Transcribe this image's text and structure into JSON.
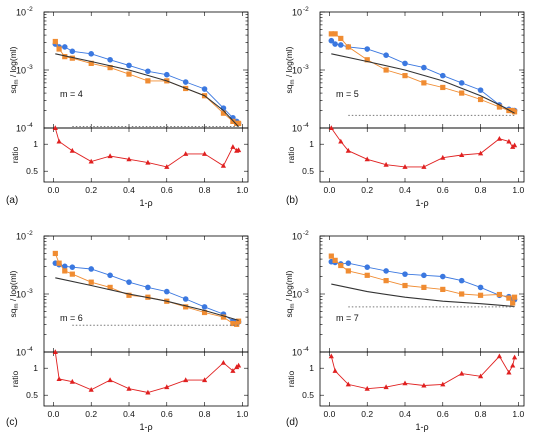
{
  "chart_data": [
    {
      "panel_label": "(a)",
      "annotation": "m = 4",
      "type": "line",
      "xlabel": "1-ρ",
      "top": {
        "ylabel": "sq_m / log(ml)",
        "ylabel_main": "sq",
        "ylabel_sub": "m",
        "ylabel_rest": " / log(ml)",
        "yscale": "log",
        "ylim": [
          0.0001,
          0.01
        ],
        "yticks": [
          {
            "v": 0.0001,
            "m": "4"
          },
          {
            "v": 0.001,
            "m": "3"
          },
          {
            "v": 0.01,
            "m": "2"
          }
        ],
        "xlim": [
          -0.05,
          1.03
        ],
        "series": [
          {
            "color": "#3b78e0",
            "marker": "circle",
            "x": [
              0.01,
              0.03,
              0.06,
              0.1,
              0.2,
              0.3,
              0.4,
              0.5,
              0.6,
              0.7,
              0.8,
              0.9,
              0.95,
              0.97,
              0.98
            ],
            "y": [
              0.0028,
              0.0025,
              0.0025,
              0.0021,
              0.0019,
              0.0015,
              0.0012,
              0.00095,
              0.00083,
              0.00062,
              0.00047,
              0.00022,
              0.00015,
              0.00013,
              0.00012
            ]
          },
          {
            "color": "#f08c32",
            "marker": "square",
            "x": [
              0.01,
              0.03,
              0.06,
              0.1,
              0.2,
              0.3,
              0.4,
              0.5,
              0.6,
              0.7,
              0.8,
              0.9,
              0.95,
              0.97,
              0.98
            ],
            "y": [
              0.0031,
              0.0023,
              0.0017,
              0.0016,
              0.0013,
              0.0011,
              0.00085,
              0.00065,
              0.00065,
              0.00048,
              0.00036,
              0.00018,
              0.00013,
              0.00012,
              0.00012
            ]
          },
          {
            "color": "#333333",
            "style": "solid",
            "x": [
              0.01,
              0.2,
              0.4,
              0.6,
              0.8,
              0.9,
              0.98
            ],
            "y": [
              0.0019,
              0.0014,
              0.001,
              0.00065,
              0.00036,
              0.0002,
              0.000105
            ]
          },
          {
            "color": "#777777",
            "style": "dotted",
            "x": [
              0.1,
              0.98
            ],
            "y": [
              0.000106,
              0.000106
            ]
          }
        ]
      },
      "bottom": {
        "ylabel": "ratio",
        "ylim": [
          0.3,
          1.3
        ],
        "yticks": [
          0.5,
          1
        ],
        "color": "#e02020",
        "x": [
          0.01,
          0.03,
          0.1,
          0.2,
          0.3,
          0.4,
          0.5,
          0.6,
          0.7,
          0.8,
          0.9,
          0.95,
          0.97,
          0.98
        ],
        "y": [
          1.3,
          1.05,
          0.88,
          0.68,
          0.78,
          0.72,
          0.66,
          0.58,
          0.82,
          0.82,
          0.6,
          0.95,
          0.88,
          0.89
        ]
      }
    },
    {
      "panel_label": "(b)",
      "annotation": "m = 5",
      "type": "line",
      "xlabel": "1-ρ",
      "top": {
        "ylabel": "sq_m / log(ml)",
        "ylabel_main": "sq",
        "ylabel_sub": "m",
        "ylabel_rest": " / log(ml)",
        "yscale": "log",
        "ylim": [
          0.0001,
          0.01
        ],
        "yticks": [
          {
            "v": 0.0001,
            "m": "4"
          },
          {
            "v": 0.001,
            "m": "3"
          },
          {
            "v": 0.01,
            "m": "2"
          }
        ],
        "xlim": [
          -0.05,
          1.03
        ],
        "series": [
          {
            "color": "#3b78e0",
            "marker": "circle",
            "x": [
              0.01,
              0.03,
              0.06,
              0.1,
              0.2,
              0.3,
              0.4,
              0.5,
              0.6,
              0.7,
              0.8,
              0.9,
              0.95,
              0.97,
              0.98
            ],
            "y": [
              0.0032,
              0.0028,
              0.0027,
              0.0025,
              0.0023,
              0.0018,
              0.0013,
              0.0011,
              0.0008,
              0.0006,
              0.00045,
              0.00025,
              0.00021,
              0.0002,
              0.0002
            ]
          },
          {
            "color": "#f08c32",
            "marker": "square",
            "x": [
              0.01,
              0.03,
              0.06,
              0.1,
              0.2,
              0.3,
              0.4,
              0.5,
              0.6,
              0.7,
              0.8,
              0.9,
              0.95,
              0.97,
              0.98
            ],
            "y": [
              0.0042,
              0.0042,
              0.0035,
              0.0025,
              0.0015,
              0.001,
              0.0008,
              0.0006,
              0.0005,
              0.0004,
              0.00031,
              0.00023,
              0.0002,
              0.0002,
              0.00019
            ]
          },
          {
            "color": "#333333",
            "style": "solid",
            "x": [
              0.01,
              0.2,
              0.4,
              0.6,
              0.8,
              0.9,
              0.98
            ],
            "y": [
              0.0019,
              0.0014,
              0.001,
              0.00065,
              0.00036,
              0.00025,
              0.00018
            ]
          },
          {
            "color": "#777777",
            "style": "dotted",
            "x": [
              0.1,
              0.98
            ],
            "y": [
              0.000165,
              0.000165
            ]
          }
        ]
      },
      "bottom": {
        "ylabel": "ratio",
        "ylim": [
          0.3,
          1.3
        ],
        "yticks": [
          0.5,
          1
        ],
        "color": "#e02020",
        "x": [
          0.01,
          0.06,
          0.1,
          0.2,
          0.3,
          0.4,
          0.5,
          0.6,
          0.7,
          0.8,
          0.9,
          0.95,
          0.97,
          0.98
        ],
        "y": [
          1.3,
          1.05,
          0.88,
          0.72,
          0.62,
          0.58,
          0.58,
          0.75,
          0.8,
          0.83,
          1.1,
          1.05,
          0.95,
          0.98
        ]
      }
    },
    {
      "panel_label": "(c)",
      "annotation": "m = 6",
      "type": "line",
      "xlabel": "1-ρ",
      "top": {
        "ylabel": "sq_m / log(ml)",
        "ylabel_main": "sq",
        "ylabel_sub": "m",
        "ylabel_rest": " / log(ml)",
        "yscale": "log",
        "ylim": [
          0.0001,
          0.01
        ],
        "yticks": [
          {
            "v": 0.0001,
            "m": "4"
          },
          {
            "v": 0.001,
            "m": "3"
          },
          {
            "v": 0.01,
            "m": "2"
          }
        ],
        "xlim": [
          -0.05,
          1.03
        ],
        "series": [
          {
            "color": "#3b78e0",
            "marker": "circle",
            "x": [
              0.01,
              0.03,
              0.06,
              0.1,
              0.2,
              0.3,
              0.4,
              0.5,
              0.6,
              0.7,
              0.8,
              0.9,
              0.95,
              0.97,
              0.98
            ],
            "y": [
              0.0034,
              0.0032,
              0.003,
              0.0029,
              0.0027,
              0.0021,
              0.0016,
              0.0013,
              0.0011,
              0.00082,
              0.0006,
              0.00045,
              0.00034,
              0.00033,
              0.00033
            ]
          },
          {
            "color": "#f08c32",
            "marker": "square",
            "x": [
              0.01,
              0.03,
              0.06,
              0.1,
              0.2,
              0.3,
              0.4,
              0.5,
              0.6,
              0.7,
              0.8,
              0.9,
              0.95,
              0.97,
              0.98
            ],
            "y": [
              0.005,
              0.0034,
              0.0025,
              0.0022,
              0.0016,
              0.0013,
              0.00095,
              0.00088,
              0.00075,
              0.0006,
              0.00048,
              0.0004,
              0.00031,
              0.0003,
              0.00034
            ]
          },
          {
            "color": "#333333",
            "style": "solid",
            "x": [
              0.01,
              0.2,
              0.4,
              0.6,
              0.8,
              0.9,
              0.98
            ],
            "y": [
              0.0019,
              0.0014,
              0.001,
              0.00075,
              0.00052,
              0.00042,
              0.00035
            ]
          },
          {
            "color": "#777777",
            "style": "dotted",
            "x": [
              0.1,
              0.98
            ],
            "y": [
              0.00029,
              0.00029
            ]
          }
        ]
      },
      "bottom": {
        "ylabel": "ratio",
        "ylim": [
          0.3,
          1.3
        ],
        "yticks": [
          0.5,
          1
        ],
        "color": "#e02020",
        "x": [
          0.01,
          0.03,
          0.1,
          0.2,
          0.3,
          0.4,
          0.5,
          0.6,
          0.7,
          0.8,
          0.9,
          0.95,
          0.97,
          0.98
        ],
        "y": [
          1.3,
          0.8,
          0.75,
          0.6,
          0.78,
          0.62,
          0.55,
          0.65,
          0.78,
          0.78,
          1.1,
          0.95,
          1.02,
          1.05
        ]
      }
    },
    {
      "panel_label": "(d)",
      "annotation": "m = 7",
      "type": "line",
      "xlabel": "1-ρ",
      "top": {
        "ylabel": "sq_m / log(ml)",
        "ylabel_main": "sq",
        "ylabel_sub": "m",
        "ylabel_rest": " / log(ml)",
        "yscale": "log",
        "ylim": [
          0.0001,
          0.01
        ],
        "yticks": [
          {
            "v": 0.0001,
            "m": "4"
          },
          {
            "v": 0.001,
            "m": "3"
          },
          {
            "v": 0.01,
            "m": "2"
          }
        ],
        "xlim": [
          -0.05,
          1.03
        ],
        "series": [
          {
            "color": "#3b78e0",
            "marker": "circle",
            "x": [
              0.01,
              0.03,
              0.06,
              0.1,
              0.2,
              0.3,
              0.4,
              0.5,
              0.6,
              0.7,
              0.8,
              0.9,
              0.95,
              0.97,
              0.98
            ],
            "y": [
              0.0036,
              0.0035,
              0.0033,
              0.0034,
              0.0029,
              0.0025,
              0.0022,
              0.0021,
              0.002,
              0.0017,
              0.0013,
              0.00095,
              0.0009,
              0.0008,
              0.0008
            ]
          },
          {
            "color": "#f08c32",
            "marker": "square",
            "x": [
              0.01,
              0.03,
              0.06,
              0.1,
              0.2,
              0.3,
              0.4,
              0.5,
              0.6,
              0.7,
              0.8,
              0.9,
              0.95,
              0.97,
              0.98
            ],
            "y": [
              0.0045,
              0.0038,
              0.0031,
              0.0025,
              0.0021,
              0.0017,
              0.0014,
              0.0013,
              0.0012,
              0.001,
              0.00095,
              0.00098,
              0.00085,
              0.0007,
              0.00088
            ]
          },
          {
            "color": "#333333",
            "style": "solid",
            "x": [
              0.01,
              0.2,
              0.4,
              0.6,
              0.8,
              0.9,
              0.98
            ],
            "y": [
              0.00148,
              0.0011,
              0.00088,
              0.00075,
              0.00068,
              0.00064,
              0.00061
            ]
          },
          {
            "color": "#777777",
            "style": "dotted",
            "x": [
              0.1,
              0.98
            ],
            "y": [
              0.0006,
              0.0006
            ]
          }
        ]
      },
      "bottom": {
        "ylabel": "ratio",
        "ylim": [
          0.3,
          1.3
        ],
        "yticks": [
          0.5,
          1
        ],
        "color": "#e02020",
        "x": [
          0.01,
          0.03,
          0.1,
          0.2,
          0.3,
          0.4,
          0.5,
          0.6,
          0.7,
          0.8,
          0.9,
          0.95,
          0.97,
          0.98
        ],
        "y": [
          1.22,
          0.95,
          0.7,
          0.62,
          0.65,
          0.72,
          0.68,
          0.7,
          0.9,
          0.85,
          1.22,
          0.92,
          1.05,
          1.2
        ]
      }
    }
  ]
}
